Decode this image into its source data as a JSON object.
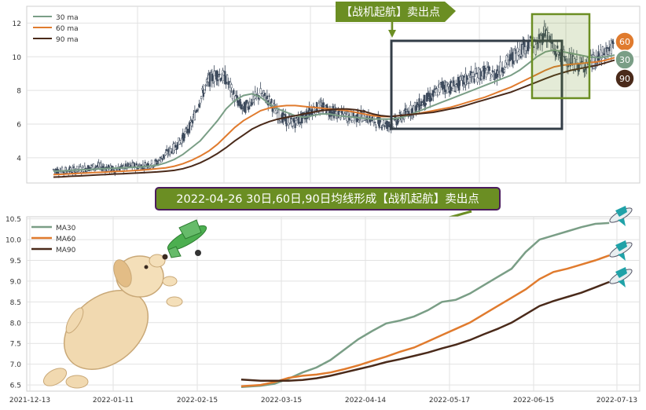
{
  "chart_data": [
    {
      "type": "line",
      "subtype": "candlestick with moving averages",
      "title": "",
      "legend": [
        "30 ma",
        "60 ma",
        "90 ma"
      ],
      "legend_position": "top-left",
      "ylim": [
        2.5,
        13.0
      ],
      "yticks": [
        "4",
        "6",
        "8",
        "10",
        "12"
      ],
      "grid": true,
      "callout": "【战机起航】卖出点",
      "badges": [
        "60",
        "30",
        "90"
      ],
      "colors": {
        "ma30": "#7a9e86",
        "ma60": "#e07b2e",
        "ma90": "#4a2a1a",
        "candle": "#3d4a5c",
        "callout_bg": "#6b8e23"
      },
      "price_close": [
        3.3,
        3.2,
        3.25,
        3.3,
        3.4,
        3.5,
        3.4,
        3.3,
        3.4,
        3.5,
        3.5,
        3.6,
        3.7,
        4.2,
        4.6,
        5.2,
        6.0,
        7.5,
        8.6,
        9.0,
        8.7,
        7.6,
        6.9,
        7.4,
        7.8,
        7.4,
        6.6,
        6.2,
        6.1,
        6.4,
        6.9,
        7.0,
        6.8,
        6.6,
        6.5,
        6.4,
        6.5,
        6.2,
        6.1,
        5.9,
        6.3,
        6.7,
        7.0,
        7.4,
        7.7,
        8.3,
        8.2,
        8.4,
        8.7,
        8.9,
        9.1,
        8.9,
        9.4,
        9.9,
        10.4,
        10.8,
        10.6,
        11.6,
        10.3,
        10.1,
        9.7,
        9.5,
        9.6,
        9.8,
        10.3,
        10.7
      ],
      "ma30": [
        3.2,
        3.22,
        3.25,
        3.28,
        3.3,
        3.33,
        3.36,
        3.38,
        3.4,
        3.42,
        3.45,
        3.5,
        3.55,
        3.7,
        3.9,
        4.2,
        4.6,
        5.0,
        5.6,
        6.2,
        6.9,
        7.4,
        7.7,
        7.8,
        7.6,
        7.2,
        6.9,
        6.7,
        6.5,
        6.4,
        6.5,
        6.6,
        6.6,
        6.5,
        6.45,
        6.4,
        6.35,
        6.3,
        6.3,
        6.3,
        6.35,
        6.5,
        6.7,
        6.9,
        7.1,
        7.3,
        7.5,
        7.7,
        7.9,
        8.1,
        8.3,
        8.5,
        8.7,
        8.9,
        9.2,
        9.6,
        10.0,
        10.3,
        10.4,
        10.3,
        10.2,
        10.1,
        10.0,
        9.95,
        10.0,
        10.1
      ],
      "ma60": [
        3.0,
        3.02,
        3.05,
        3.08,
        3.1,
        3.13,
        3.15,
        3.18,
        3.2,
        3.23,
        3.26,
        3.3,
        3.35,
        3.4,
        3.5,
        3.65,
        3.85,
        4.1,
        4.4,
        4.8,
        5.3,
        5.8,
        6.2,
        6.5,
        6.8,
        6.95,
        7.05,
        7.1,
        7.1,
        7.05,
        7.0,
        6.95,
        6.9,
        6.85,
        6.8,
        6.7,
        6.6,
        6.5,
        6.45,
        6.45,
        6.5,
        6.55,
        6.6,
        6.7,
        6.8,
        6.9,
        7.0,
        7.15,
        7.3,
        7.45,
        7.6,
        7.8,
        8.0,
        8.2,
        8.45,
        8.7,
        8.95,
        9.2,
        9.4,
        9.5,
        9.55,
        9.6,
        9.65,
        9.7,
        9.8,
        9.95
      ],
      "ma90": [
        2.85,
        2.87,
        2.9,
        2.92,
        2.95,
        2.98,
        3.0,
        3.03,
        3.05,
        3.08,
        3.1,
        3.13,
        3.16,
        3.2,
        3.25,
        3.35,
        3.5,
        3.7,
        3.95,
        4.25,
        4.6,
        5.0,
        5.35,
        5.7,
        5.95,
        6.15,
        6.3,
        6.4,
        6.5,
        6.6,
        6.7,
        6.8,
        6.85,
        6.9,
        6.9,
        6.85,
        6.75,
        6.6,
        6.5,
        6.45,
        6.5,
        6.55,
        6.6,
        6.65,
        6.7,
        6.8,
        6.9,
        7.0,
        7.15,
        7.3,
        7.45,
        7.6,
        7.75,
        7.9,
        8.1,
        8.3,
        8.5,
        8.7,
        8.9,
        9.05,
        9.2,
        9.3,
        9.4,
        9.5,
        9.65,
        9.8
      ]
    },
    {
      "type": "line",
      "title": "2022-04-26 30日,60日,90日均线形成【战机起航】卖出点",
      "legend": [
        "MA30",
        "MA60",
        "MA90"
      ],
      "legend_position": "top-left",
      "grid": true,
      "xlabels": [
        "2021-12-13",
        "2022-01-11",
        "2022-02-15",
        "2022-03-15",
        "2022-04-14",
        "2022-05-17",
        "2022-06-15",
        "2022-07-13"
      ],
      "xlim": [
        0,
        212
      ],
      "ylim": [
        6.35,
        10.55
      ],
      "yticks": [
        "6.5",
        "7.0",
        "7.5",
        "8.0",
        "8.5",
        "9.0",
        "9.5",
        "10.0",
        "10.5"
      ],
      "colors": {
        "MA30": "#7a9e86",
        "MA60": "#e07b2e",
        "MA90": "#4a2a1a"
      },
      "series": [
        {
          "name": "MA30",
          "x": [
            73,
            80,
            85,
            90,
            95,
            100,
            105,
            110,
            115,
            120,
            125,
            130,
            135,
            140,
            145,
            150,
            155,
            160,
            165,
            170,
            175,
            180,
            185,
            190,
            195,
            200,
            205
          ],
          "values": [
            6.45,
            6.48,
            6.53,
            6.65,
            6.8,
            6.92,
            7.1,
            7.35,
            7.6,
            7.8,
            7.98,
            8.05,
            8.15,
            8.3,
            8.5,
            8.55,
            8.7,
            8.9,
            9.1,
            9.3,
            9.7,
            10.0,
            10.1,
            10.2,
            10.3,
            10.38,
            10.4
          ]
        },
        {
          "name": "MA60",
          "x": [
            73,
            80,
            85,
            90,
            95,
            100,
            105,
            110,
            115,
            120,
            125,
            130,
            135,
            140,
            145,
            150,
            155,
            160,
            165,
            170,
            175,
            180,
            185,
            190,
            195,
            200,
            205
          ],
          "values": [
            6.47,
            6.5,
            6.57,
            6.67,
            6.72,
            6.75,
            6.8,
            6.88,
            6.97,
            7.08,
            7.18,
            7.3,
            7.4,
            7.55,
            7.7,
            7.85,
            8.0,
            8.2,
            8.4,
            8.6,
            8.8,
            9.05,
            9.22,
            9.3,
            9.4,
            9.5,
            9.62
          ]
        },
        {
          "name": "MA90",
          "x": [
            73,
            80,
            85,
            90,
            95,
            100,
            105,
            110,
            115,
            120,
            125,
            130,
            135,
            140,
            145,
            150,
            155,
            160,
            165,
            170,
            175,
            180,
            185,
            190,
            195,
            200,
            205
          ],
          "values": [
            6.63,
            6.6,
            6.6,
            6.6,
            6.62,
            6.66,
            6.72,
            6.8,
            6.88,
            6.96,
            7.05,
            7.12,
            7.2,
            7.28,
            7.38,
            7.47,
            7.58,
            7.72,
            7.85,
            8.0,
            8.2,
            8.4,
            8.52,
            8.62,
            8.72,
            8.85,
            8.98
          ]
        }
      ]
    }
  ]
}
